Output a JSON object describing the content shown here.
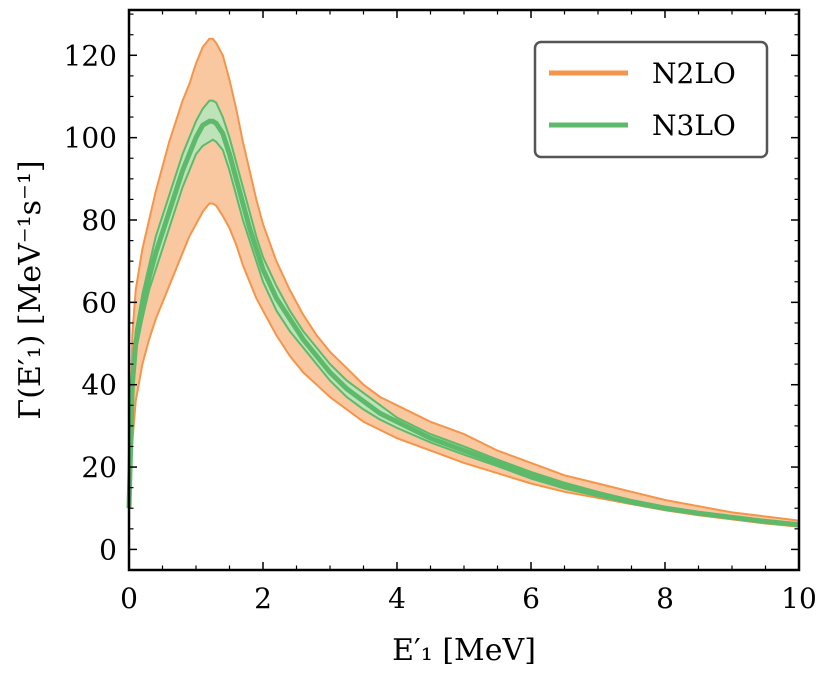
{
  "chart_data": {
    "type": "line",
    "xlabel": "E′₁ [MeV]",
    "ylabel": "Γ(E′₁) [MeV⁻¹s⁻¹]",
    "xlim": [
      0,
      10
    ],
    "ylim": [
      -5,
      131
    ],
    "x_ticks": [
      "0",
      "2",
      "4",
      "6",
      "8",
      "10"
    ],
    "y_ticks": [
      "0",
      "20",
      "40",
      "60",
      "80",
      "100",
      "120"
    ],
    "legend_position": "top-right",
    "grid": false,
    "x": [
      0,
      0.05,
      0.1,
      0.2,
      0.3,
      0.4,
      0.5,
      0.6,
      0.7,
      0.8,
      0.9,
      1.0,
      1.1,
      1.2,
      1.25,
      1.3,
      1.4,
      1.5,
      1.6,
      1.7,
      1.8,
      1.9,
      2.0,
      2.2,
      2.4,
      2.6,
      2.8,
      3.0,
      3.25,
      3.5,
      3.75,
      4.0,
      4.5,
      5.0,
      5.5,
      6.0,
      6.5,
      7.0,
      7.5,
      8.0,
      8.5,
      9.0,
      9.5,
      10.0
    ],
    "series": [
      {
        "name": "N2LO",
        "color": "#f5954a",
        "fill": "#fac8a0",
        "upper": [
          10,
          52,
          63,
          73,
          80,
          87,
          93,
          99,
          104,
          109,
          113,
          118,
          122,
          124,
          124,
          123,
          120,
          114,
          107,
          99,
          92,
          85,
          79,
          70,
          63,
          57,
          52,
          48,
          44,
          40,
          37,
          35,
          31,
          28,
          24,
          21,
          18,
          16,
          14,
          12,
          10.5,
          9,
          8,
          7
        ],
        "lower": [
          10,
          26,
          36,
          45,
          51,
          56,
          60,
          64,
          68,
          72,
          76,
          79,
          82,
          84,
          84,
          83.5,
          81,
          78,
          74,
          69,
          65,
          61,
          58,
          52,
          47,
          43,
          40,
          37,
          34,
          31,
          29,
          27,
          24,
          21,
          18.5,
          16,
          14,
          12.5,
          11,
          9.5,
          8.3,
          7.3,
          6.3,
          5.5
        ]
      },
      {
        "name": "N3LO",
        "color": "#5dba6b",
        "fill": "#bfe3b8",
        "center": [
          10,
          40,
          50,
          59,
          66,
          72,
          77,
          82,
          87,
          92,
          96,
          100,
          103,
          104,
          104,
          103.5,
          101,
          96,
          90,
          84,
          78,
          73,
          68,
          61,
          56,
          51,
          47,
          43,
          39,
          36,
          33,
          31,
          27,
          24,
          21,
          18,
          15.5,
          13.5,
          11.5,
          10,
          8.8,
          7.8,
          6.8,
          6
        ],
        "upper": [
          10,
          42,
          53,
          62,
          69,
          76,
          81,
          86,
          91,
          96,
          100,
          104,
          107,
          109,
          109,
          108.5,
          105,
          100,
          94,
          88,
          82,
          76,
          71,
          64,
          58,
          53,
          49,
          45,
          41,
          38,
          35,
          32,
          28,
          25,
          21.8,
          18.8,
          16.2,
          14,
          12,
          10.4,
          9.1,
          8.1,
          7.1,
          6.3
        ],
        "lower": [
          10,
          38,
          48,
          56,
          63,
          68,
          73,
          78,
          83,
          88,
          92,
          96,
          98,
          99,
          99.5,
          99,
          97,
          92,
          86,
          80,
          75,
          70,
          65,
          58,
          53,
          49,
          45,
          41,
          37,
          34,
          31.5,
          29.5,
          26,
          23,
          20.2,
          17.2,
          14.8,
          12.9,
          11.1,
          9.6,
          8.5,
          7.5,
          6.5,
          5.7
        ]
      }
    ]
  }
}
